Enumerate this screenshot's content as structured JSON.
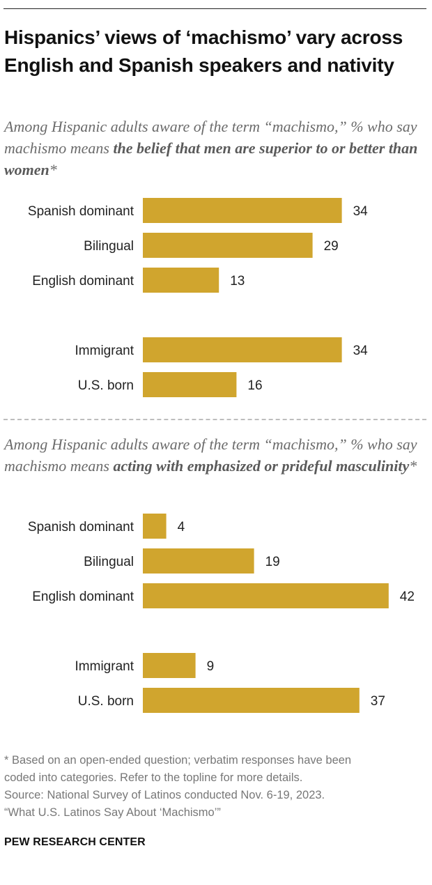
{
  "title": "Hispanics’ views of ‘machismo’ vary across English and Spanish speakers and nativity",
  "panels": [
    {
      "subtitle_plain": "Among Hispanic adults aware of the term “machismo,” % who say machismo means ",
      "subtitle_bold": "the belief that men are superior to or better than women",
      "subtitle_suffix": "*"
    },
    {
      "subtitle_plain": "Among Hispanic adults aware of the term “machismo,” % who say machismo means ",
      "subtitle_bold": "acting with emphasized or prideful masculinity",
      "subtitle_suffix": "*"
    }
  ],
  "chart_data": [
    {
      "type": "bar",
      "orientation": "horizontal",
      "title": "",
      "xlabel": "",
      "ylabel": "",
      "xlim": [
        0,
        42
      ],
      "grid": false,
      "groups": [
        [
          "Spanish dominant",
          "Bilingual",
          "English dominant"
        ],
        [
          "Immigrant",
          "U.S. born"
        ]
      ],
      "categories": [
        "Spanish dominant",
        "Bilingual",
        "English dominant",
        "Immigrant",
        "U.S. born"
      ],
      "values": [
        34,
        29,
        13,
        34,
        16
      ],
      "data_labels": [
        "34",
        "29",
        "13",
        "34",
        "16"
      ],
      "color": "#d0a52e"
    },
    {
      "type": "bar",
      "orientation": "horizontal",
      "title": "",
      "xlabel": "",
      "ylabel": "",
      "xlim": [
        0,
        42
      ],
      "grid": false,
      "groups": [
        [
          "Spanish dominant",
          "Bilingual",
          "English dominant"
        ],
        [
          "Immigrant",
          "U.S. born"
        ]
      ],
      "categories": [
        "Spanish dominant",
        "Bilingual",
        "English dominant",
        "Immigrant",
        "U.S. born"
      ],
      "values": [
        4,
        19,
        42,
        9,
        37
      ],
      "data_labels": [
        "4",
        "19",
        "42",
        "9",
        "37"
      ],
      "color": "#d0a52e"
    }
  ],
  "notes": {
    "footnote_1": "* Based on an open-ended question; verbatim responses have been",
    "footnote_2": "coded into categories. Refer to the topline for more details.",
    "source": "Source: National Survey of Latinos conducted Nov. 6-19, 2023.",
    "report": "“What U.S. Latinos Say About ‘Machismo’”"
  },
  "brand": "PEW RESEARCH CENTER",
  "colors": {
    "bar": "#d0a52e",
    "subtitle": "#6b6b6b",
    "notes": "#777777"
  }
}
